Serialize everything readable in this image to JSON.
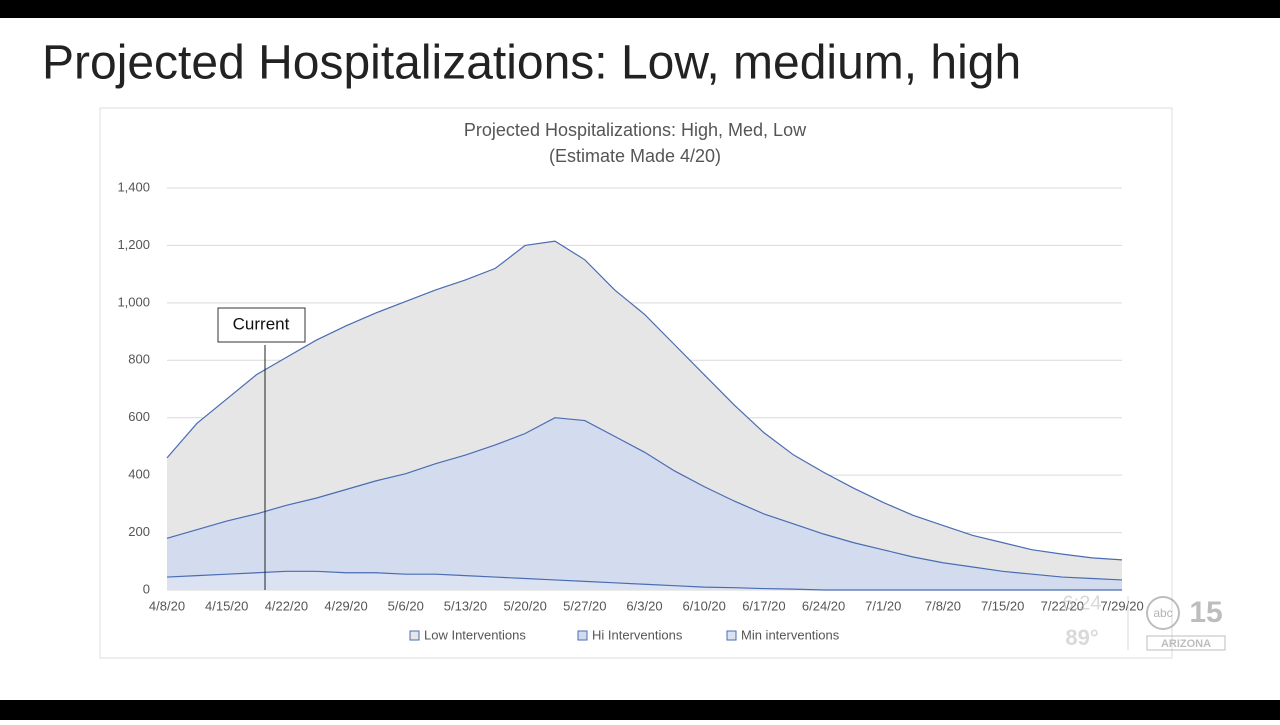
{
  "slide_title": "Projected Hospitalizations: Low, medium, high",
  "chart_data": {
    "type": "area",
    "title": "Projected Hospitalizations: High, Med, Low",
    "subtitle": "(Estimate Made 4/20)",
    "annotation": "Current",
    "categories": [
      "4/8/20",
      null,
      "4/15/20",
      null,
      "4/22/20",
      null,
      "4/29/20",
      null,
      "5/6/20",
      null,
      "5/13/20",
      null,
      "5/20/20",
      null,
      "5/27/20",
      null,
      "6/3/20",
      null,
      "6/10/20",
      null,
      "6/17/20",
      null,
      "6/24/20",
      null,
      "7/1/20",
      null,
      "7/8/20",
      null,
      "7/15/20",
      null,
      "7/22/20",
      null,
      "7/29/20"
    ],
    "series": [
      {
        "name": "Low Interventions",
        "color": "#e6e6e6",
        "values": [
          460,
          580,
          665,
          750,
          810,
          870,
          920,
          965,
          1005,
          1045,
          1080,
          1120,
          1200,
          1215,
          1150,
          1045,
          960,
          855,
          750,
          645,
          548,
          470,
          410,
          355,
          305,
          260,
          225,
          190,
          165,
          140,
          125,
          112,
          105
        ]
      },
      {
        "name": "Hi Interventions",
        "color": "#d3dcef",
        "values": [
          180,
          210,
          240,
          265,
          295,
          320,
          350,
          380,
          405,
          440,
          470,
          505,
          545,
          600,
          590,
          535,
          480,
          415,
          360,
          310,
          265,
          230,
          195,
          165,
          140,
          115,
          95,
          80,
          65,
          55,
          45,
          40,
          35
        ]
      },
      {
        "name": "Min interventions",
        "color": "#dbe2f1",
        "values": [
          45,
          50,
          55,
          60,
          65,
          65,
          60,
          60,
          55,
          55,
          50,
          45,
          40,
          35,
          30,
          25,
          20,
          15,
          10,
          8,
          5,
          3,
          0,
          0,
          0,
          0,
          0,
          0,
          0,
          0,
          0,
          0,
          0
        ]
      }
    ],
    "line_color": "#4a6cb3",
    "ylim": [
      0,
      1400
    ],
    "yticks": [
      0,
      200,
      400,
      600,
      800,
      {
        "value": 1000,
        "label": "1,000"
      },
      {
        "value": 1200,
        "label": "1,200"
      },
      {
        "value": 1400,
        "label": "1,400"
      }
    ],
    "grid": true
  },
  "overlay": {
    "time": "6:24",
    "temperature": "89°",
    "network": "abc",
    "channel": "15",
    "station": "ARIZONA"
  }
}
